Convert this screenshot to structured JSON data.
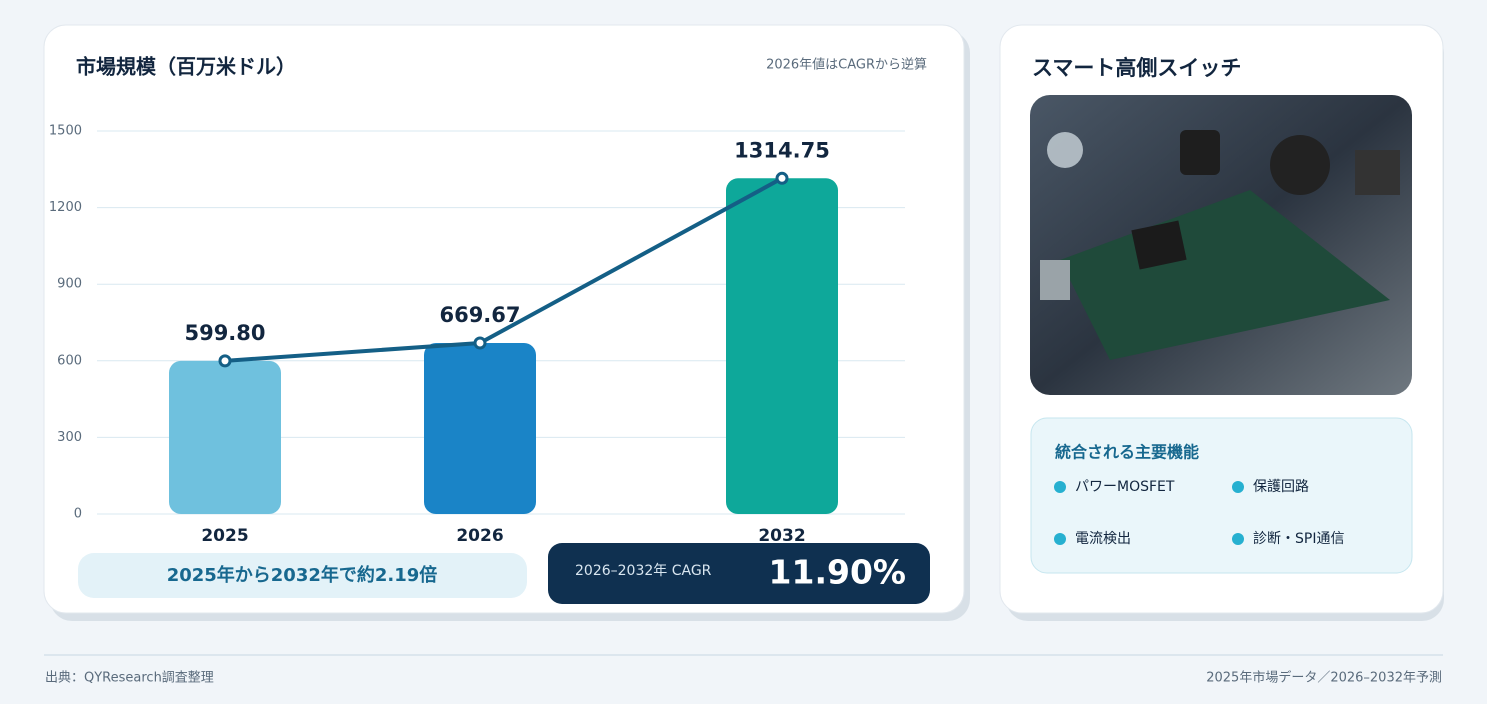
{
  "chart_data": {
    "type": "bar",
    "title": "市場規模（百万米ドル）",
    "note": "2026年値はCAGRから逆算",
    "categories": [
      "2025",
      "2026",
      "2032"
    ],
    "values": [
      599.8,
      669.67,
      1314.75
    ],
    "value_labels": [
      "599.80",
      "669.67",
      "1314.75"
    ],
    "colors": [
      "#6fc1de",
      "#1a84c7",
      "#0ea89a"
    ],
    "line_color": "#145f86",
    "ylim": [
      0,
      1500
    ],
    "yticks": [
      0,
      300,
      600,
      900,
      1200,
      1500
    ],
    "grid": true
  },
  "summary": {
    "multiplier": "2025年から2032年で約2.19倍",
    "cagr_label": "2026–2032年 CAGR",
    "cagr_value": "11.90%"
  },
  "product": {
    "title": "スマート高側スイッチ",
    "features_title": "統合される主要機能",
    "features": [
      "パワーMOSFET",
      "保護回路",
      "電流検出",
      "診断・SPI通信"
    ]
  },
  "footer": {
    "source": "出典：QYResearch調査整理",
    "note": "2025年市場データ／2026–2032年予測"
  }
}
